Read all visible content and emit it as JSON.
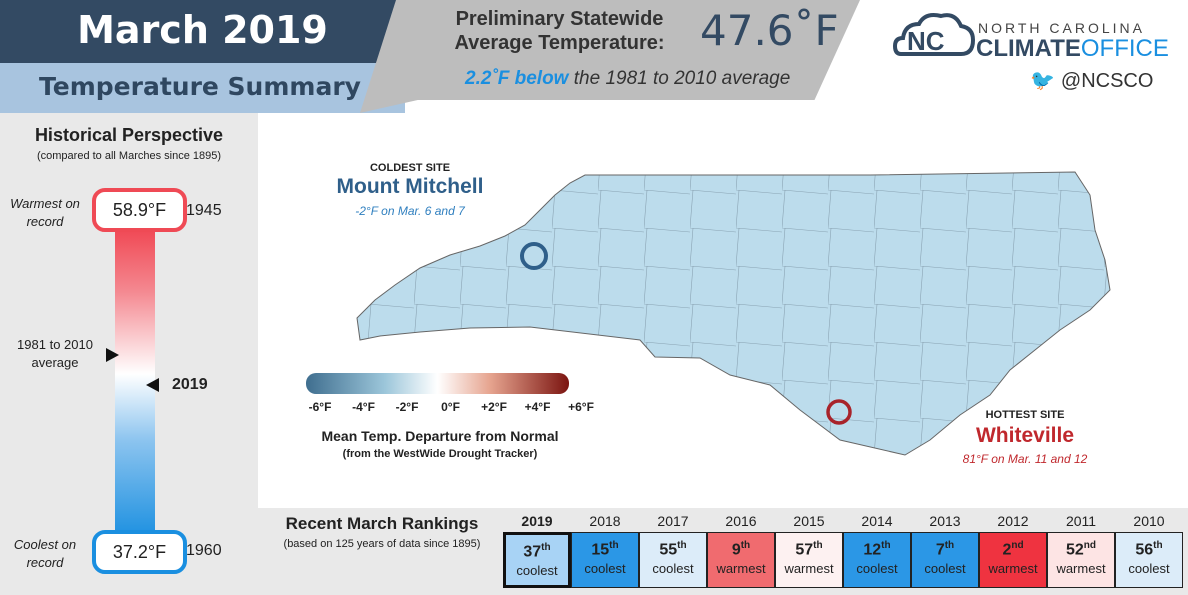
{
  "header": {
    "title": "March 2019",
    "subtitle": "Temperature Summary",
    "prelim_label": "Preliminary Statewide Average Temperature:",
    "avg_temp": "47.6˚F",
    "departure_emphasis": "2.2˚F below",
    "departure_rest": " the 1981 to 2010 average"
  },
  "logo": {
    "top": "NORTH CAROLINA",
    "climate": "CLIMATE",
    "office": "OFFICE",
    "twitter": "@NCSCO",
    "twitter_icon": "twitter-bird-icon"
  },
  "historical": {
    "title": "Historical Perspective",
    "subtitle": "(compared to all Marches since 1895)",
    "warmest_label": "Warmest on record",
    "warmest_value": "58.9°F",
    "warmest_year": "1945",
    "coolest_label": "Coolest on record",
    "coolest_value": "37.2°F",
    "coolest_year": "1960",
    "avg_label": "1981 to 2010 average",
    "current_year": "2019"
  },
  "map": {
    "coldest_header": "COLDEST SITE",
    "coldest_name": "Mount Mitchell",
    "coldest_detail": "-2°F on Mar. 6 and 7",
    "hottest_header": "HOTTEST SITE",
    "hottest_name": "Whiteville",
    "hottest_detail": "81°F on Mar. 11 and 12"
  },
  "legend": {
    "ticks": [
      "-6°F",
      "-4°F",
      "-2°F",
      "0°F",
      "+2°F",
      "+4°F",
      "+6°F"
    ],
    "title": "Mean Temp. Departure from Normal",
    "subtitle": "(from the WestWide Drought Tracker)"
  },
  "rankings": {
    "title": "Recent March Rankings",
    "subtitle": "(based on 125 years of data since 1895)",
    "years": [
      {
        "year": "2019",
        "rank": "37",
        "suffix": "th",
        "dir": "coolest",
        "color": "#a8d3f5",
        "bold": true
      },
      {
        "year": "2018",
        "rank": "15",
        "suffix": "th",
        "dir": "coolest",
        "color": "#2b97e6"
      },
      {
        "year": "2017",
        "rank": "55",
        "suffix": "th",
        "dir": "coolest",
        "color": "#dcecf9"
      },
      {
        "year": "2016",
        "rank": "9",
        "suffix": "th",
        "dir": "warmest",
        "color": "#f06b6f"
      },
      {
        "year": "2015",
        "rank": "57",
        "suffix": "th",
        "dir": "warmest",
        "color": "#fdf1f1"
      },
      {
        "year": "2014",
        "rank": "12",
        "suffix": "th",
        "dir": "coolest",
        "color": "#2b97e6"
      },
      {
        "year": "2013",
        "rank": "7",
        "suffix": "th",
        "dir": "coolest",
        "color": "#2b97e6"
      },
      {
        "year": "2012",
        "rank": "2",
        "suffix": "nd",
        "dir": "warmest",
        "color": "#ef3340"
      },
      {
        "year": "2011",
        "rank": "52",
        "suffix": "nd",
        "dir": "warmest",
        "color": "#fde4e4"
      },
      {
        "year": "2010",
        "rank": "56",
        "suffix": "th",
        "dir": "coolest",
        "color": "#dcecf9"
      }
    ]
  }
}
